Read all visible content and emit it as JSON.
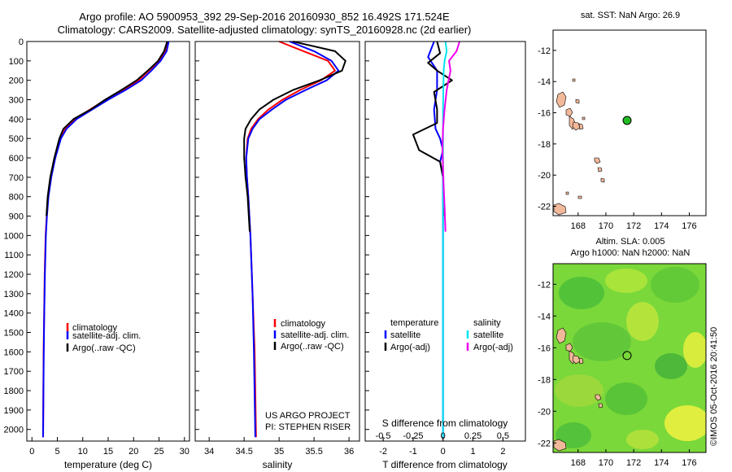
{
  "header": {
    "line1": "Argo profile: AO 5900953_392 29-Sep-2016 20160930_852 16.492S 171.524E",
    "line2": "Climatology: CARS2009. Satellite-adjusted climatology: synTS_20160928.nc (2d earlier)"
  },
  "colors": {
    "climatology": "#ff0000",
    "satellite": "#0000ff",
    "argo": "#000000",
    "sat_salinity": "#00e5ee",
    "argo_salinity": "#ee00ee",
    "land": "#f2b89a",
    "float_marker": "#22bb22"
  },
  "depth_ticks": [
    "0",
    "100",
    "200",
    "300",
    "400",
    "500",
    "600",
    "700",
    "800",
    "900",
    "1000",
    "1100",
    "1200",
    "1300",
    "1400",
    "1500",
    "1600",
    "1700",
    "1800",
    "1900",
    "2000"
  ],
  "chart_data": [
    {
      "type": "line",
      "panel": "temperature",
      "xlabel": "temperature (deg C)",
      "ylim": [
        2060,
        0
      ],
      "xlim": [
        -1,
        31
      ],
      "xticks": [
        "0",
        "5",
        "10",
        "15",
        "20",
        "25",
        "30"
      ],
      "xtick_values": [
        0,
        5,
        10,
        15,
        20,
        25,
        30
      ],
      "legend": [
        "climatology",
        "satellite-adj. clim.",
        "Argo(..raw -QC)"
      ],
      "series": [
        {
          "name": "climatology",
          "color": "#ff0000",
          "x": [
            26.8,
            26.3,
            25.0,
            23.0,
            21.0,
            18.0,
            14.5,
            11.5,
            8.5,
            6.6,
            5.6,
            4.5,
            3.8,
            3.2,
            2.9,
            2.7,
            2.5,
            2.4,
            2.3,
            2.25,
            2.2
          ],
          "y": [
            0,
            50,
            100,
            150,
            200,
            250,
            300,
            350,
            400,
            450,
            500,
            600,
            700,
            800,
            900,
            1000,
            1200,
            1400,
            1600,
            1800,
            2040
          ]
        },
        {
          "name": "satellite-adj. clim.",
          "color": "#0000ff",
          "x": [
            26.9,
            26.5,
            25.3,
            23.5,
            21.5,
            18.4,
            15.0,
            11.9,
            8.8,
            6.8,
            5.7,
            4.6,
            3.8,
            3.25,
            2.95,
            2.75,
            2.55,
            2.42,
            2.33,
            2.27,
            2.2
          ],
          "y": [
            0,
            50,
            100,
            150,
            200,
            250,
            300,
            350,
            400,
            450,
            500,
            600,
            700,
            800,
            900,
            1000,
            1200,
            1400,
            1600,
            1800,
            2040
          ]
        },
        {
          "name": "Argo(..raw -QC)",
          "color": "#000000",
          "x": [
            26.6,
            26.0,
            24.8,
            22.8,
            20.6,
            17.6,
            14.4,
            11.6,
            8.2,
            6.2,
            5.4,
            4.4,
            3.6,
            3.1,
            2.85
          ],
          "y": [
            0,
            50,
            100,
            150,
            200,
            250,
            300,
            350,
            400,
            450,
            500,
            600,
            700,
            800,
            900
          ]
        }
      ]
    },
    {
      "type": "line",
      "panel": "salinity",
      "xlabel": "salinity",
      "ylim": [
        2060,
        0
      ],
      "xlim": [
        33.8,
        36.15
      ],
      "xticks": [
        "34",
        "34.5",
        "35",
        "35.5",
        "36"
      ],
      "xtick_values": [
        34,
        34.5,
        35,
        35.5,
        36
      ],
      "legend": [
        "climatology",
        "satellite-adj. clim.",
        "Argo(..raw -QC)"
      ],
      "annotation": [
        "US ARGO PROJECT",
        "PI: STEPHEN RISER"
      ],
      "series": [
        {
          "name": "climatology",
          "color": "#ff0000",
          "x": [
            35.0,
            35.35,
            35.7,
            35.8,
            35.6,
            35.3,
            35.05,
            34.85,
            34.7,
            34.6,
            34.55,
            34.53,
            34.54,
            34.56,
            34.59,
            34.62,
            34.65,
            34.67
          ],
          "y": [
            0,
            50,
            100,
            150,
            200,
            250,
            300,
            350,
            400,
            450,
            500,
            600,
            700,
            800,
            1000,
            1300,
            1600,
            2040
          ]
        },
        {
          "name": "satellite-adj. clim.",
          "color": "#0000ff",
          "x": [
            35.15,
            35.5,
            35.75,
            35.85,
            35.68,
            35.38,
            35.1,
            34.9,
            34.72,
            34.62,
            34.56,
            34.53,
            34.54,
            34.56,
            34.59,
            34.62,
            34.64,
            34.66
          ],
          "y": [
            0,
            50,
            100,
            150,
            200,
            250,
            300,
            350,
            400,
            450,
            500,
            600,
            700,
            800,
            1000,
            1300,
            1600,
            2040
          ]
        },
        {
          "name": "Argo(..raw -QC)",
          "color": "#000000",
          "x": [
            35.2,
            35.8,
            35.95,
            35.9,
            35.58,
            35.2,
            34.92,
            34.72,
            34.6,
            34.52,
            34.5,
            34.5,
            34.52,
            34.55,
            34.58
          ],
          "y": [
            0,
            50,
            100,
            150,
            200,
            250,
            300,
            350,
            400,
            450,
            500,
            600,
            700,
            800,
            980
          ]
        }
      ]
    },
    {
      "type": "line",
      "panel": "difference",
      "xlabel": "T difference from climatology",
      "x2label": "S difference from climatology",
      "ylim": [
        2060,
        0
      ],
      "xlim": [
        -2.6,
        2.75
      ],
      "xticks": [
        "-2",
        "-1",
        "0",
        "1",
        "2"
      ],
      "xtick_values": [
        -2,
        -1,
        0,
        1,
        2
      ],
      "x2ticks": [
        "-0.5",
        "-0.25",
        "0",
        "0.25",
        "0.5"
      ],
      "x2tick_values": [
        -0.5,
        -0.25,
        0,
        0.25,
        0.5
      ],
      "legend_temperature": [
        "temperature",
        "satellite",
        "Argo(-adj)"
      ],
      "legend_salinity": [
        "salinity",
        "satellite",
        "Argo(-adj)"
      ],
      "series": [
        {
          "name": "satellite",
          "color": "#0000ff",
          "x": [
            -0.3,
            -0.5,
            -0.2,
            -0.2,
            -0.3,
            -0.25,
            -0.1,
            0,
            -0.1,
            0,
            0,
            0,
            0
          ],
          "y": [
            0,
            80,
            150,
            250,
            350,
            450,
            500,
            560,
            620,
            700,
            900,
            1400,
            2040
          ]
        },
        {
          "name": "Argo(-adj)",
          "color": "#000000",
          "x": [
            -0.2,
            -0.1,
            -0.5,
            -0.2,
            0.3,
            -0.3,
            -0.2,
            -0.2,
            -1.0,
            -0.8,
            -0.1,
            0,
            0.05
          ],
          "y": [
            0,
            60,
            110,
            150,
            200,
            260,
            350,
            420,
            480,
            560,
            620,
            700,
            900
          ]
        },
        {
          "name": "satellite",
          "color": "#00e5ee",
          "x": [
            0.08,
            0.12,
            0.05,
            0.02,
            0.01,
            0,
            0,
            0,
            0,
            0
          ],
          "y": [
            0,
            50,
            100,
            150,
            250,
            350,
            500,
            800,
            1300,
            2040
          ]
        },
        {
          "name": "Argo(-adj)",
          "color": "#ee00ee",
          "x": [
            0.55,
            0.45,
            0.2,
            0.25,
            0.12,
            0.05,
            0,
            -0.02,
            0.0,
            0.02,
            0.05,
            0.08
          ],
          "y": [
            0,
            50,
            100,
            150,
            250,
            350,
            450,
            550,
            650,
            750,
            850,
            980
          ]
        }
      ]
    },
    {
      "type": "scatter",
      "panel": "sst-map",
      "title": "sat. SST: NaN Argo: 26.9",
      "xlim": [
        166.2,
        177.2
      ],
      "ylim": [
        -22.6,
        -10.7
      ],
      "xticks": [
        "168",
        "170",
        "172",
        "174",
        "176"
      ],
      "xtick_values": [
        168,
        170,
        172,
        174,
        176
      ],
      "yticks": [
        "-12",
        "-14",
        "-16",
        "-18",
        "-20",
        "-22"
      ],
      "ytick_values": [
        -12,
        -14,
        -16,
        -18,
        -20,
        -22
      ],
      "float_position": {
        "lon": 171.524,
        "lat": -16.492
      }
    },
    {
      "type": "heatmap",
      "panel": "sla-map",
      "title1": "Altim. SLA: 0.005",
      "title2": "Argo h1000: NaN h2000: NaN",
      "xlim": [
        166.2,
        177.2
      ],
      "ylim": [
        -22.6,
        -10.7
      ],
      "xticks": [
        "168",
        "170",
        "172",
        "174",
        "176"
      ],
      "xtick_values": [
        168,
        170,
        172,
        174,
        176
      ],
      "yticks": [
        "-12",
        "-14",
        "-16",
        "-18",
        "-20",
        "-22"
      ],
      "ytick_values": [
        -12,
        -14,
        -16,
        -18,
        -20,
        -22
      ],
      "float_position": {
        "lon": 171.524,
        "lat": -16.492
      }
    }
  ],
  "imos_label": "©IMOS 05-Oct-2016 20:41:50"
}
